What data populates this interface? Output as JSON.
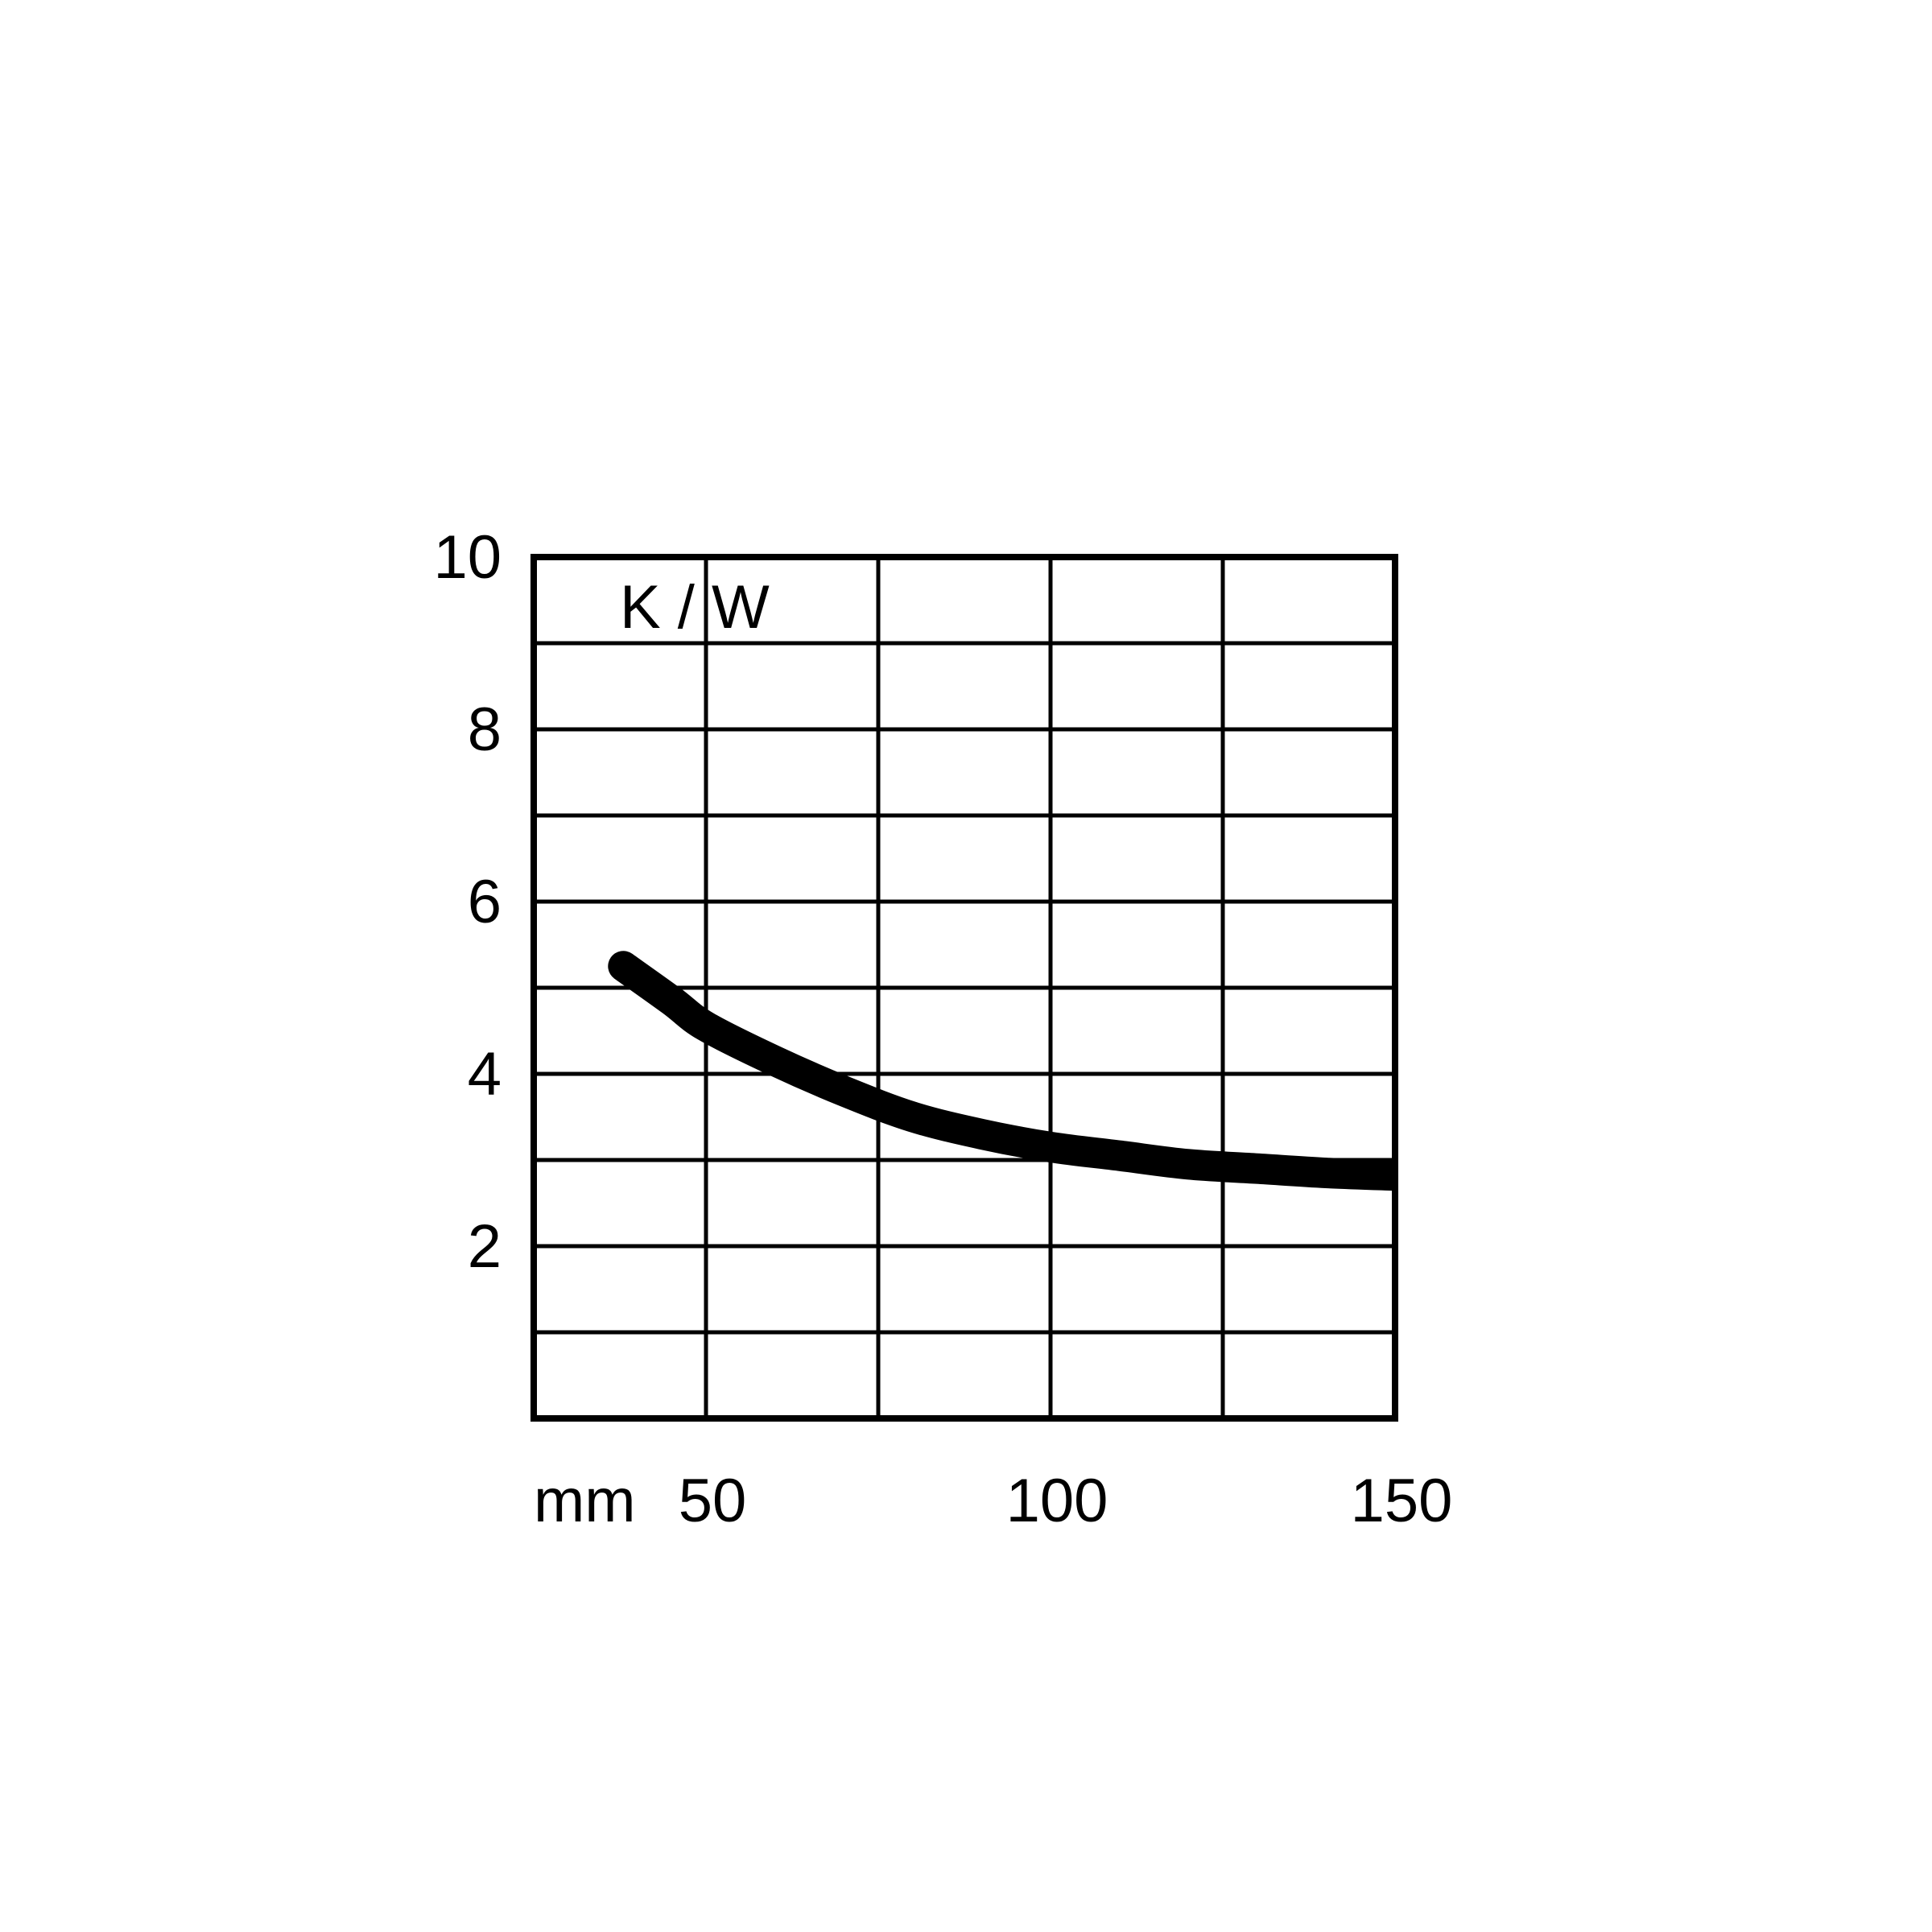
{
  "chart_data": {
    "type": "line",
    "title": "",
    "xlabel": "mm",
    "ylabel": "K / W",
    "xlim": [
      25,
      150
    ],
    "ylim": [
      0,
      10
    ],
    "x_ticks": [
      {
        "value": 50,
        "label": "50"
      },
      {
        "value": 100,
        "label": "100"
      },
      {
        "value": 150,
        "label": "150"
      }
    ],
    "y_ticks": [
      {
        "value": 2,
        "label": "2"
      },
      {
        "value": 4,
        "label": "4"
      },
      {
        "value": 6,
        "label": "6"
      },
      {
        "value": 8,
        "label": "8"
      },
      {
        "value": 10,
        "label": "10"
      }
    ],
    "x_grid": [
      25,
      50,
      75,
      100,
      125,
      150
    ],
    "y_grid": [
      0,
      1,
      2,
      3,
      4,
      5,
      6,
      7,
      8,
      9,
      10
    ],
    "grid": true,
    "legend": "none",
    "series": [
      {
        "x": [
          38,
          45,
          50,
          60,
          70,
          80,
          90,
          100,
          110,
          120,
          130,
          140,
          150
        ],
        "y": [
          5.25,
          4.85,
          4.55,
          4.15,
          3.8,
          3.5,
          3.3,
          3.15,
          3.05,
          2.95,
          2.9,
          2.85,
          2.82
        ]
      }
    ],
    "colors": {
      "line": "#000000",
      "grid": "#000000",
      "background": "#ffffff"
    }
  }
}
